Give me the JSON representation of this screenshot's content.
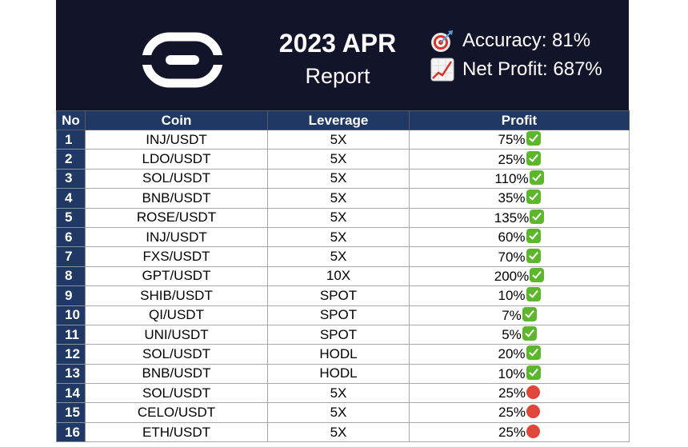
{
  "header": {
    "title": "2023 APR",
    "subtitle": "Report",
    "accuracy": "Accuracy: 81%",
    "net_profit": "Net Profit: 687%",
    "accuracy_icon": "target-icon",
    "net_profit_icon": "chart-increasing-icon"
  },
  "columns": {
    "no": "No",
    "coin": "Coin",
    "leverage": "Leverage",
    "profit": "Profit"
  },
  "rows": [
    {
      "no": "1",
      "coin": "INJ/USDT",
      "leverage": "5X",
      "profit": "75%",
      "status": "check"
    },
    {
      "no": "2",
      "coin": "LDO/USDT",
      "leverage": "5X",
      "profit": "25%",
      "status": "check"
    },
    {
      "no": "3",
      "coin": "SOL/USDT",
      "leverage": "5X",
      "profit": "110%",
      "status": "check"
    },
    {
      "no": "4",
      "coin": "BNB/USDT",
      "leverage": "5X",
      "profit": "35%",
      "status": "check"
    },
    {
      "no": "5",
      "coin": "ROSE/USDT",
      "leverage": "5X",
      "profit": "135%",
      "status": "check"
    },
    {
      "no": "6",
      "coin": "INJ/USDT",
      "leverage": "5X",
      "profit": "60%",
      "status": "check"
    },
    {
      "no": "7",
      "coin": "FXS/USDT",
      "leverage": "5X",
      "profit": "70%",
      "status": "check"
    },
    {
      "no": "8",
      "coin": "GPT/USDT",
      "leverage": "10X",
      "profit": "200%",
      "status": "check"
    },
    {
      "no": "9",
      "coin": "SHIB/USDT",
      "leverage": "SPOT",
      "profit": "10%",
      "status": "check"
    },
    {
      "no": "10",
      "coin": "QI/USDT",
      "leverage": "SPOT",
      "profit": "7%",
      "status": "check"
    },
    {
      "no": "11",
      "coin": "UNI/USDT",
      "leverage": "SPOT",
      "profit": "5%",
      "status": "check"
    },
    {
      "no": "12",
      "coin": "SOL/USDT",
      "leverage": "HODL",
      "profit": "20%",
      "status": "check"
    },
    {
      "no": "13",
      "coin": "BNB/USDT",
      "leverage": "HODL",
      "profit": "10%",
      "status": "check"
    },
    {
      "no": "14",
      "coin": "SOL/USDT",
      "leverage": "5X",
      "profit": "25%",
      "status": "stop"
    },
    {
      "no": "15",
      "coin": "CELO/USDT",
      "leverage": "5X",
      "profit": "25%",
      "status": "stop"
    },
    {
      "no": "16",
      "coin": "ETH/USDT",
      "leverage": "5X",
      "profit": "25%",
      "status": "stop"
    }
  ],
  "colors": {
    "banner": "#12142a",
    "header_row": "#1f3864",
    "check": "#5cb72d",
    "stop": "#e0463a"
  }
}
